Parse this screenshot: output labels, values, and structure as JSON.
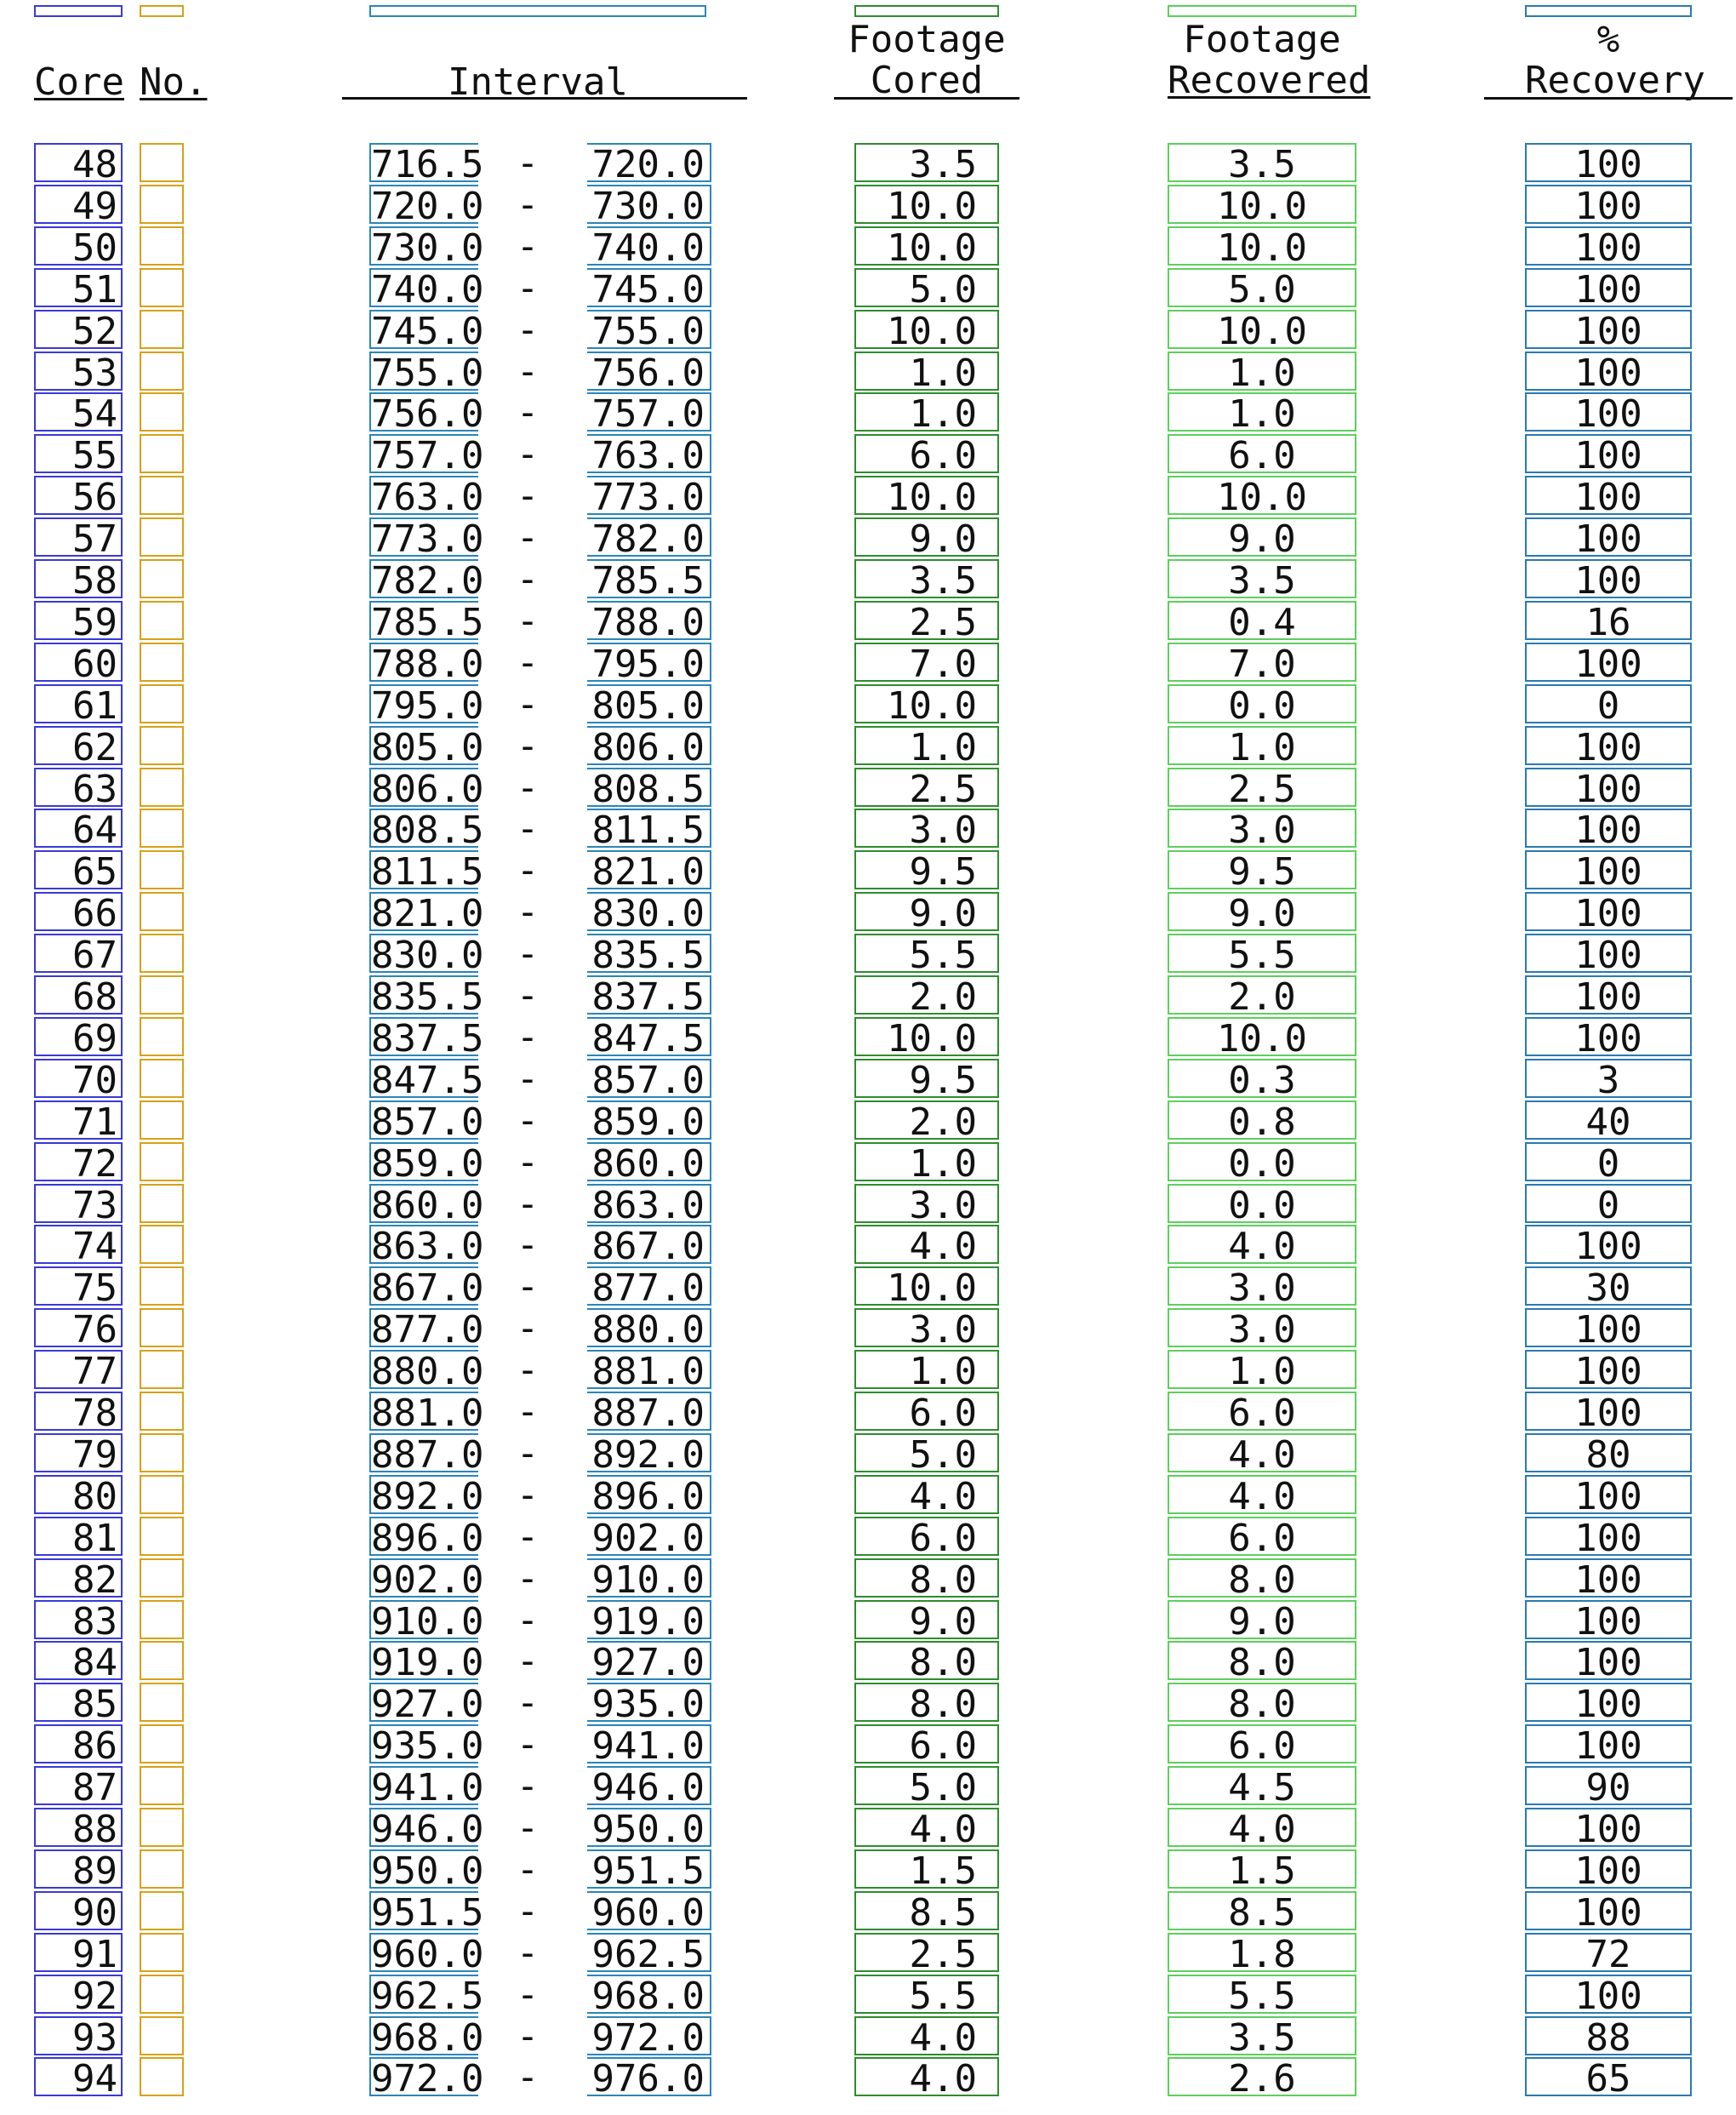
{
  "headers": {
    "core": "Core",
    "no": "No.",
    "interval": "Interval",
    "footage_cored_1": "Footage",
    "footage_cored_2": "Cored",
    "footage_recovered_1": "Footage",
    "footage_recovered_2": "Recovered",
    "pct_1": "%",
    "pct_2": "Recovery"
  },
  "dash": "-",
  "rows": [
    {
      "core": "48",
      "from": "716.5",
      "to": "720.0",
      "cored": "3.5",
      "recovered": "3.5",
      "pct": "100"
    },
    {
      "core": "49",
      "from": "720.0",
      "to": "730.0",
      "cored": "10.0",
      "recovered": "10.0",
      "pct": "100"
    },
    {
      "core": "50",
      "from": "730.0",
      "to": "740.0",
      "cored": "10.0",
      "recovered": "10.0",
      "pct": "100"
    },
    {
      "core": "51",
      "from": "740.0",
      "to": "745.0",
      "cored": "5.0",
      "recovered": "5.0",
      "pct": "100"
    },
    {
      "core": "52",
      "from": "745.0",
      "to": "755.0",
      "cored": "10.0",
      "recovered": "10.0",
      "pct": "100"
    },
    {
      "core": "53",
      "from": "755.0",
      "to": "756.0",
      "cored": "1.0",
      "recovered": "1.0",
      "pct": "100"
    },
    {
      "core": "54",
      "from": "756.0",
      "to": "757.0",
      "cored": "1.0",
      "recovered": "1.0",
      "pct": "100"
    },
    {
      "core": "55",
      "from": "757.0",
      "to": "763.0",
      "cored": "6.0",
      "recovered": "6.0",
      "pct": "100"
    },
    {
      "core": "56",
      "from": "763.0",
      "to": "773.0",
      "cored": "10.0",
      "recovered": "10.0",
      "pct": "100"
    },
    {
      "core": "57",
      "from": "773.0",
      "to": "782.0",
      "cored": "9.0",
      "recovered": "9.0",
      "pct": "100"
    },
    {
      "core": "58",
      "from": "782.0",
      "to": "785.5",
      "cored": "3.5",
      "recovered": "3.5",
      "pct": "100"
    },
    {
      "core": "59",
      "from": "785.5",
      "to": "788.0",
      "cored": "2.5",
      "recovered": "0.4",
      "pct": "16"
    },
    {
      "core": "60",
      "from": "788.0",
      "to": "795.0",
      "cored": "7.0",
      "recovered": "7.0",
      "pct": "100"
    },
    {
      "core": "61",
      "from": "795.0",
      "to": "805.0",
      "cored": "10.0",
      "recovered": "0.0",
      "pct": "0"
    },
    {
      "core": "62",
      "from": "805.0",
      "to": "806.0",
      "cored": "1.0",
      "recovered": "1.0",
      "pct": "100"
    },
    {
      "core": "63",
      "from": "806.0",
      "to": "808.5",
      "cored": "2.5",
      "recovered": "2.5",
      "pct": "100"
    },
    {
      "core": "64",
      "from": "808.5",
      "to": "811.5",
      "cored": "3.0",
      "recovered": "3.0",
      "pct": "100"
    },
    {
      "core": "65",
      "from": "811.5",
      "to": "821.0",
      "cored": "9.5",
      "recovered": "9.5",
      "pct": "100"
    },
    {
      "core": "66",
      "from": "821.0",
      "to": "830.0",
      "cored": "9.0",
      "recovered": "9.0",
      "pct": "100"
    },
    {
      "core": "67",
      "from": "830.0",
      "to": "835.5",
      "cored": "5.5",
      "recovered": "5.5",
      "pct": "100"
    },
    {
      "core": "68",
      "from": "835.5",
      "to": "837.5",
      "cored": "2.0",
      "recovered": "2.0",
      "pct": "100"
    },
    {
      "core": "69",
      "from": "837.5",
      "to": "847.5",
      "cored": "10.0",
      "recovered": "10.0",
      "pct": "100"
    },
    {
      "core": "70",
      "from": "847.5",
      "to": "857.0",
      "cored": "9.5",
      "recovered": "0.3",
      "pct": "3"
    },
    {
      "core": "71",
      "from": "857.0",
      "to": "859.0",
      "cored": "2.0",
      "recovered": "0.8",
      "pct": "40"
    },
    {
      "core": "72",
      "from": "859.0",
      "to": "860.0",
      "cored": "1.0",
      "recovered": "0.0",
      "pct": "0"
    },
    {
      "core": "73",
      "from": "860.0",
      "to": "863.0",
      "cored": "3.0",
      "recovered": "0.0",
      "pct": "0"
    },
    {
      "core": "74",
      "from": "863.0",
      "to": "867.0",
      "cored": "4.0",
      "recovered": "4.0",
      "pct": "100"
    },
    {
      "core": "75",
      "from": "867.0",
      "to": "877.0",
      "cored": "10.0",
      "recovered": "3.0",
      "pct": "30"
    },
    {
      "core": "76",
      "from": "877.0",
      "to": "880.0",
      "cored": "3.0",
      "recovered": "3.0",
      "pct": "100"
    },
    {
      "core": "77",
      "from": "880.0",
      "to": "881.0",
      "cored": "1.0",
      "recovered": "1.0",
      "pct": "100"
    },
    {
      "core": "78",
      "from": "881.0",
      "to": "887.0",
      "cored": "6.0",
      "recovered": "6.0",
      "pct": "100"
    },
    {
      "core": "79",
      "from": "887.0",
      "to": "892.0",
      "cored": "5.0",
      "recovered": "4.0",
      "pct": "80"
    },
    {
      "core": "80",
      "from": "892.0",
      "to": "896.0",
      "cored": "4.0",
      "recovered": "4.0",
      "pct": "100"
    },
    {
      "core": "81",
      "from": "896.0",
      "to": "902.0",
      "cored": "6.0",
      "recovered": "6.0",
      "pct": "100"
    },
    {
      "core": "82",
      "from": "902.0",
      "to": "910.0",
      "cored": "8.0",
      "recovered": "8.0",
      "pct": "100"
    },
    {
      "core": "83",
      "from": "910.0",
      "to": "919.0",
      "cored": "9.0",
      "recovered": "9.0",
      "pct": "100"
    },
    {
      "core": "84",
      "from": "919.0",
      "to": "927.0",
      "cored": "8.0",
      "recovered": "8.0",
      "pct": "100"
    },
    {
      "core": "85",
      "from": "927.0",
      "to": "935.0",
      "cored": "8.0",
      "recovered": "8.0",
      "pct": "100"
    },
    {
      "core": "86",
      "from": "935.0",
      "to": "941.0",
      "cored": "6.0",
      "recovered": "6.0",
      "pct": "100"
    },
    {
      "core": "87",
      "from": "941.0",
      "to": "946.0",
      "cored": "5.0",
      "recovered": "4.5",
      "pct": "90"
    },
    {
      "core": "88",
      "from": "946.0",
      "to": "950.0",
      "cored": "4.0",
      "recovered": "4.0",
      "pct": "100"
    },
    {
      "core": "89",
      "from": "950.0",
      "to": "951.5",
      "cored": "1.5",
      "recovered": "1.5",
      "pct": "100"
    },
    {
      "core": "90",
      "from": "951.5",
      "to": "960.0",
      "cored": "8.5",
      "recovered": "8.5",
      "pct": "100"
    },
    {
      "core": "91",
      "from": "960.0",
      "to": "962.5",
      "cored": "2.5",
      "recovered": "1.8",
      "pct": "72"
    },
    {
      "core": "92",
      "from": "962.5",
      "to": "968.0",
      "cored": "5.5",
      "recovered": "5.5",
      "pct": "100"
    },
    {
      "core": "93",
      "from": "968.0",
      "to": "972.0",
      "cored": "4.0",
      "recovered": "3.5",
      "pct": "88"
    },
    {
      "core": "94",
      "from": "972.0",
      "to": "976.0",
      "cored": "4.0",
      "recovered": "2.6",
      "pct": "65"
    }
  ]
}
